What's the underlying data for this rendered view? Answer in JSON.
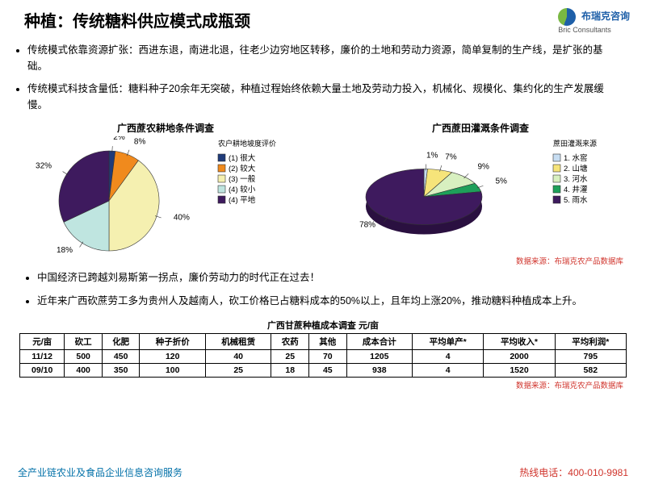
{
  "header": {
    "title": "种植：传统糖料供应模式成瓶颈",
    "logo_cn": "布瑞克咨询",
    "logo_en": "Bric Consultants"
  },
  "bullets_top": [
    "传统模式依靠资源扩张：西进东退，南进北退，往老少边穷地区转移，廉价的土地和劳动力资源，简单复制的生产线，是扩张的基础。",
    "传统模式科技含量低：糖料种子20余年无突破，种植过程始终依赖大量土地及劳动力投入，机械化、规模化、集约化的生产发展缓慢。"
  ],
  "chart1": {
    "title": "广西蔗农耕地条件调查",
    "legend_title": "农户耕地坡度评价",
    "type": "pie",
    "slices": [
      {
        "label": "(1) 很大",
        "value": 2,
        "color": "#1f3b7a"
      },
      {
        "label": "(2) 较大",
        "value": 8,
        "color": "#f08a1d"
      },
      {
        "label": "(3) 一般",
        "value": 40,
        "color": "#f5f0b0"
      },
      {
        "label": "(4) 较小",
        "value": 18,
        "color": "#bfe5e0"
      },
      {
        "label": "(4) 平地",
        "value": 32,
        "color": "#3e1a5e"
      }
    ],
    "label_fontsize": 10,
    "border_color": "#333"
  },
  "chart2": {
    "title": "广西蔗田灌溉条件调查",
    "legend_title": "蔗田灌溉来源",
    "type": "pie-3d",
    "slices": [
      {
        "label": "1. 水窖",
        "value": 1,
        "color": "#c7ddf2"
      },
      {
        "label": "2. 山塘",
        "value": 7,
        "color": "#f6e47a"
      },
      {
        "label": "3. 河水",
        "value": 9,
        "color": "#d8f0c0"
      },
      {
        "label": "4. 井灌",
        "value": 5,
        "color": "#1ea05a"
      },
      {
        "label": "5. 雨水",
        "value": 78,
        "color": "#3e1a5e"
      }
    ],
    "label_fontsize": 10,
    "border_color": "#333"
  },
  "source1": "数据来源：布瑞克农产品数据库",
  "bullets_mid": [
    "中国经济已跨越刘易斯第一拐点，廉价劳动力的时代正在过去！",
    "近年来广西砍蔗劳工多为贵州人及越南人，砍工价格已占糖料成本的50%以上，且年均上涨20%，推动糖料种植成本上升。"
  ],
  "table": {
    "title": "广西甘蔗种植成本调查 元/亩",
    "columns": [
      "元/亩",
      "砍工",
      "化肥",
      "种子折价",
      "机械租赁",
      "农药",
      "其他",
      "成本合计",
      "平均单产*",
      "平均收入*",
      "平均利润*"
    ],
    "rows": [
      [
        "11/12",
        "500",
        "450",
        "120",
        "40",
        "25",
        "70",
        "1205",
        "4",
        "2000",
        "795"
      ],
      [
        "09/10",
        "400",
        "350",
        "100",
        "25",
        "18",
        "45",
        "938",
        "4",
        "1520",
        "582"
      ]
    ]
  },
  "source2": "数据来源：布瑞克农产品数据库",
  "footer": {
    "left": "全产业链农业及食品企业信息咨询服务",
    "right": "热线电话：400-010-9981"
  }
}
